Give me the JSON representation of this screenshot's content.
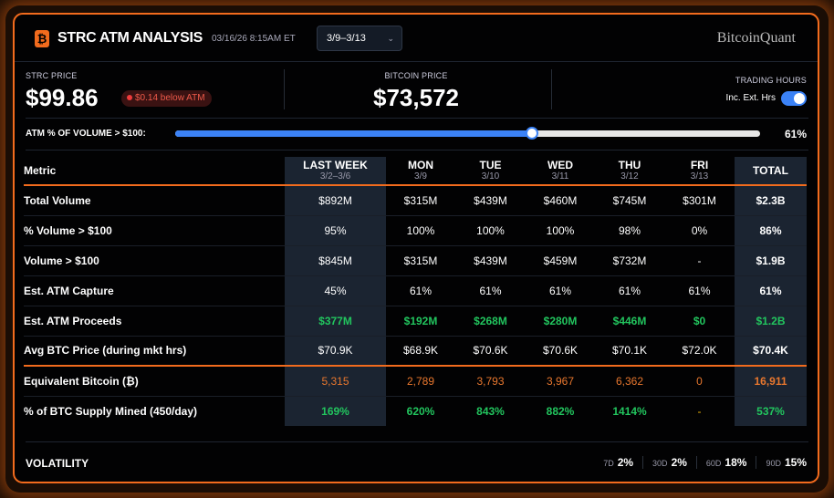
{
  "header": {
    "title": "STRC ATM ANALYSIS",
    "timestamp": "03/16/26 8:15AM ET",
    "period_select": "3/9–3/13",
    "brand": "BitcoinQuant",
    "logo_glyph": "₿"
  },
  "prices": {
    "strc_label": "STRC PRICE",
    "strc_value": "$99.86",
    "atm_badge": "$0.14 below ATM",
    "btc_label": "BITCOIN PRICE",
    "btc_value": "$73,572",
    "trading_hours_label": "TRADING HOURS",
    "toggle_label": "Inc. Ext. Hrs",
    "toggle_on": true
  },
  "atm_bar": {
    "label": "ATM % OF VOLUME > $100:",
    "value_text": "61%",
    "value": 61
  },
  "table": {
    "metric_header": "Metric",
    "columns": [
      {
        "label": "LAST WEEK",
        "sub": "3/2–3/6"
      },
      {
        "label": "MON",
        "sub": "3/9"
      },
      {
        "label": "TUE",
        "sub": "3/10"
      },
      {
        "label": "WED",
        "sub": "3/11"
      },
      {
        "label": "THU",
        "sub": "3/12"
      },
      {
        "label": "FRI",
        "sub": "3/13"
      },
      {
        "label": "TOTAL",
        "sub": ""
      }
    ],
    "rows": [
      {
        "metric": "Total Volume",
        "values": [
          "$892M",
          "$315M",
          "$439M",
          "$460M",
          "$745M",
          "$301M",
          "$2.3B"
        ]
      },
      {
        "metric": "% Volume > $100",
        "values": [
          "95%",
          "100%",
          "100%",
          "100%",
          "98%",
          "0%",
          "86%"
        ]
      },
      {
        "metric": "Volume > $100",
        "values": [
          "$845M",
          "$315M",
          "$439M",
          "$459M",
          "$732M",
          "-",
          "$1.9B"
        ]
      },
      {
        "metric": "Est. ATM Capture",
        "values": [
          "45%",
          "61%",
          "61%",
          "61%",
          "61%",
          "61%",
          "61%"
        ]
      },
      {
        "metric": "Est. ATM Proceeds",
        "values": [
          "$377M",
          "$192M",
          "$268M",
          "$280M",
          "$446M",
          "$0",
          "$1.2B"
        ]
      },
      {
        "metric": "Avg BTC Price (during mkt hrs)",
        "values": [
          "$70.9K",
          "$68.9K",
          "$70.6K",
          "$70.6K",
          "$70.1K",
          "$72.0K",
          "$70.4K"
        ]
      },
      {
        "metric": "Equivalent Bitcoin (₿)",
        "values": [
          "5,315",
          "2,789",
          "3,793",
          "3,967",
          "6,362",
          "0",
          "16,911"
        ]
      },
      {
        "metric": "% of BTC Supply Mined (450/day)",
        "values": [
          "169%",
          "620%",
          "843%",
          "882%",
          "1414%",
          "-",
          "537%"
        ]
      }
    ]
  },
  "volatility": {
    "label": "VOLATILITY",
    "items": [
      {
        "period": "7D",
        "value": "2%"
      },
      {
        "period": "30D",
        "value": "2%"
      },
      {
        "period": "60D",
        "value": "18%"
      },
      {
        "period": "90D",
        "value": "15%"
      }
    ]
  },
  "colors": {
    "accent": "#f26b1d",
    "positive": "#22c55e",
    "btc": "#e8772e",
    "toggle": "#3b82f6"
  }
}
